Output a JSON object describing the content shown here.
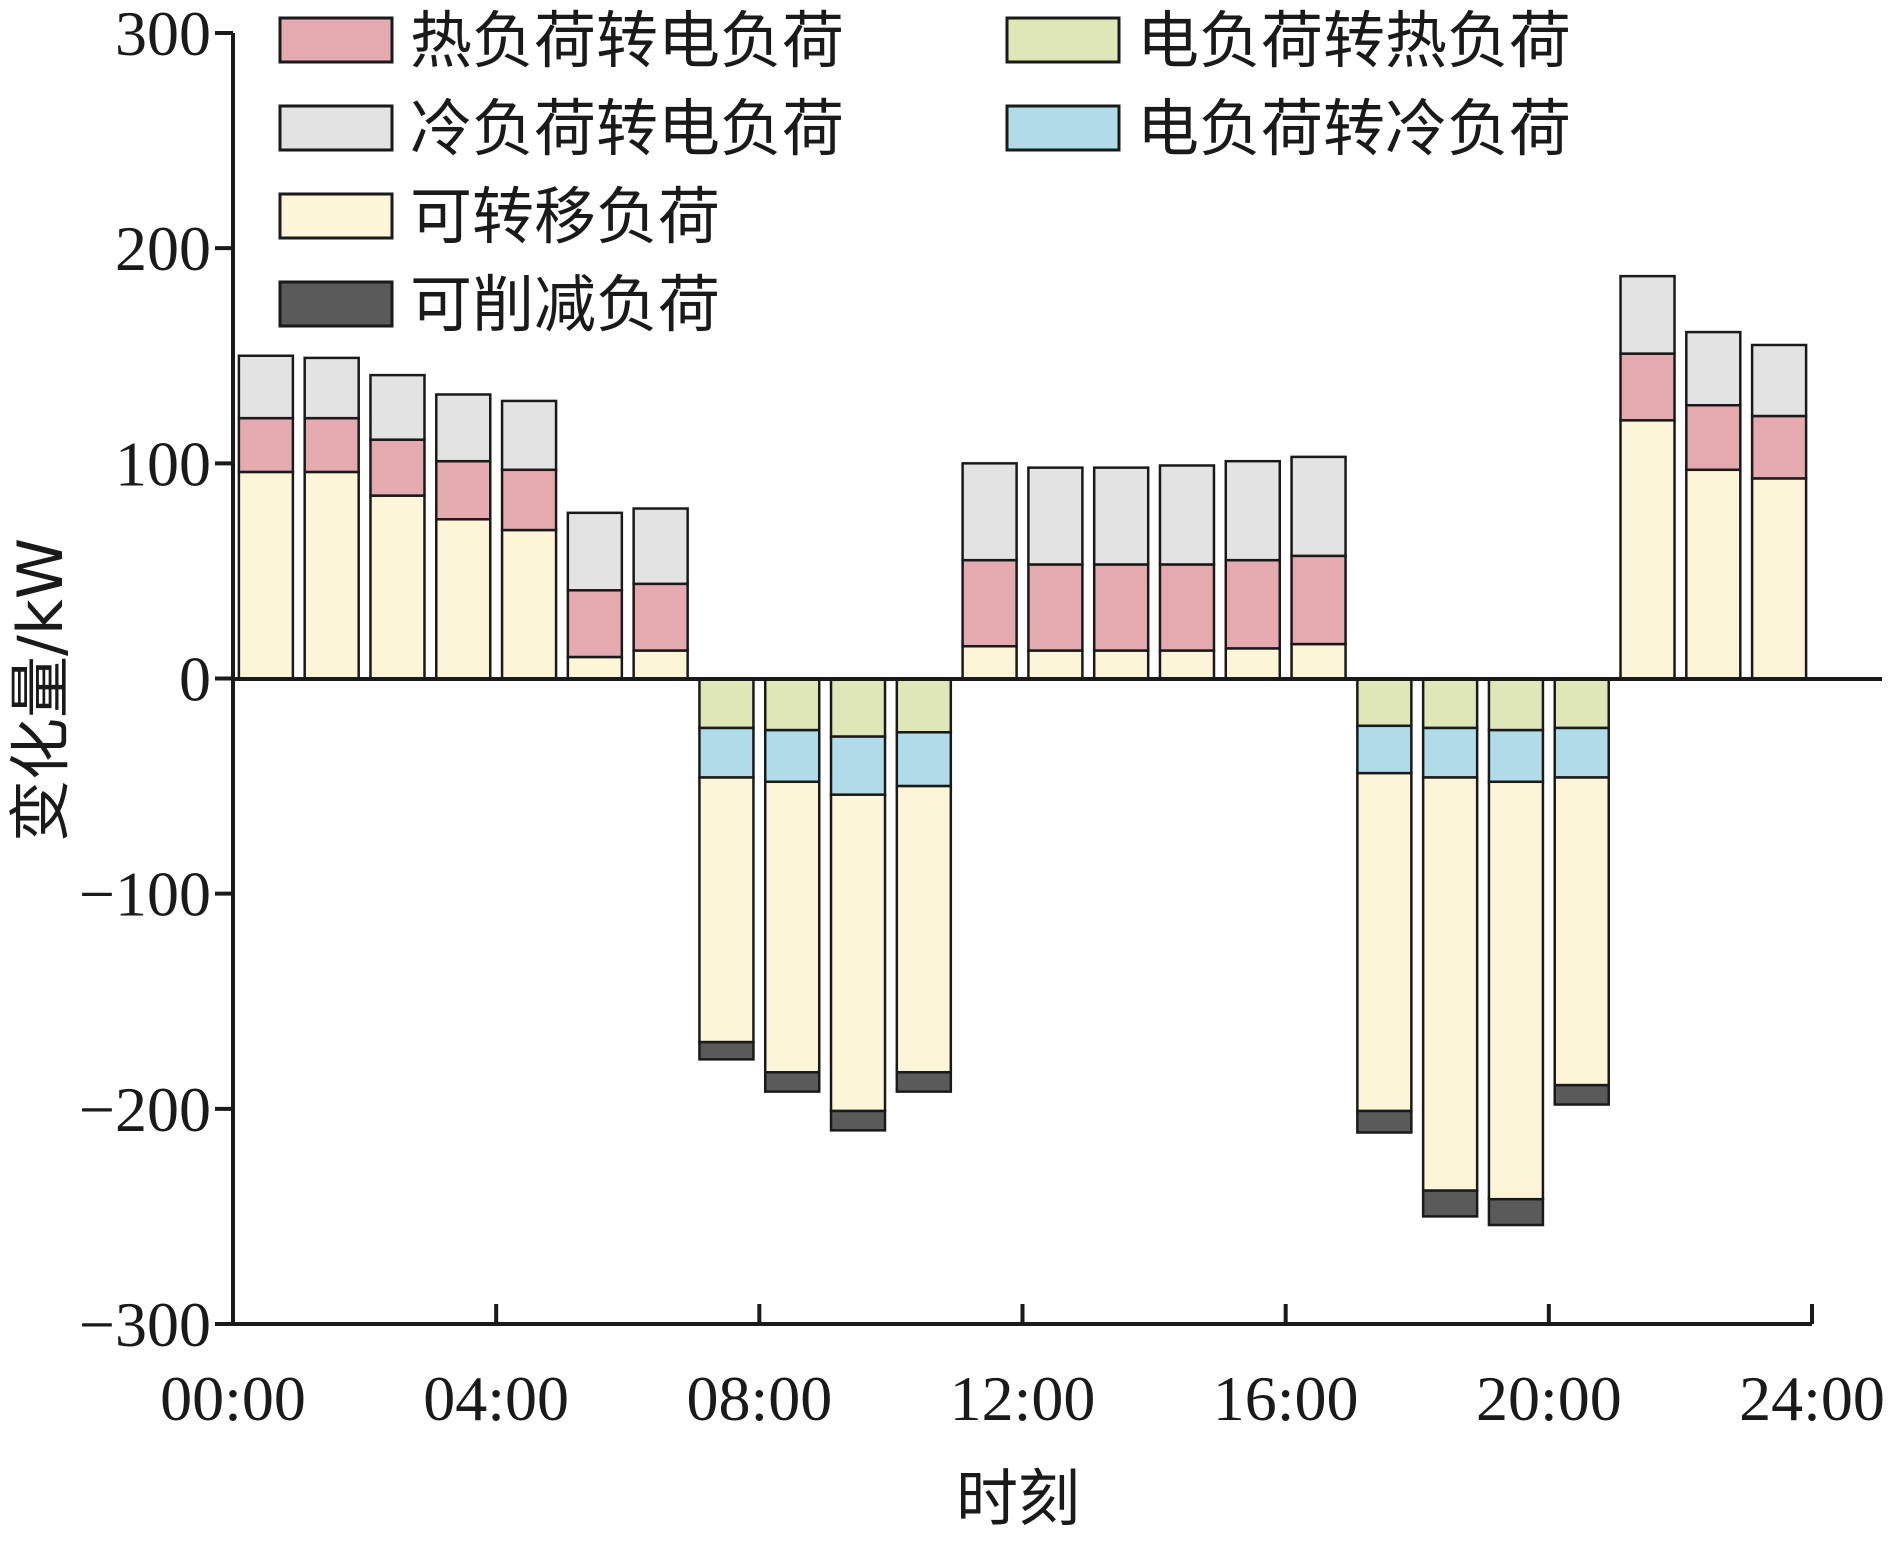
{
  "chart_data": {
    "type": "bar",
    "stacked": true,
    "title": "",
    "xlabel": "时刻",
    "ylabel": "变化量/kW",
    "ylim": [
      -300,
      300
    ],
    "yticks": [
      "300",
      "200",
      "100",
      "0",
      "−100",
      "−200",
      "−300"
    ],
    "ytick_values": [
      300,
      200,
      100,
      0,
      -100,
      -200,
      -300
    ],
    "xlim": [
      0,
      24
    ],
    "xticks": [
      "00:00",
      "04:00",
      "08:00",
      "12:00",
      "16:00",
      "20:00",
      "24:00"
    ],
    "xtick_values": [
      0,
      4,
      8,
      12,
      16,
      20,
      24
    ],
    "x": [
      1,
      2,
      3,
      4,
      5,
      6,
      7,
      8,
      9,
      10,
      11,
      12,
      13,
      14,
      15,
      16,
      17,
      18,
      19,
      20,
      21,
      22,
      23,
      24
    ],
    "legend_position": "top-left",
    "grid": false,
    "series": [
      {
        "name": "可转移负荷",
        "color": "#fdf5d8",
        "values": [
          96,
          96,
          85,
          74,
          69,
          10,
          13,
          -123,
          -135,
          -147,
          -133,
          15,
          13,
          13,
          13,
          14,
          16,
          -157,
          -192,
          -194,
          -143,
          120,
          97,
          93
        ]
      },
      {
        "name": "热负荷转电负荷",
        "color": "#e4aab0",
        "values": [
          25,
          25,
          26,
          27,
          28,
          31,
          31,
          0,
          0,
          0,
          0,
          40,
          40,
          40,
          40,
          41,
          41,
          0,
          0,
          0,
          0,
          31,
          30,
          29
        ]
      },
      {
        "name": "冷负荷转电负荷",
        "color": "#e3e3e3",
        "values": [
          29,
          28,
          30,
          31,
          32,
          36,
          35,
          0,
          0,
          0,
          0,
          45,
          45,
          45,
          46,
          46,
          46,
          0,
          0,
          0,
          0,
          36,
          34,
          33
        ]
      },
      {
        "name": "电负荷转热负荷",
        "color": "#dfe6b8",
        "values": [
          0,
          0,
          0,
          0,
          0,
          0,
          0,
          -23,
          -24,
          -27,
          -25,
          0,
          0,
          0,
          0,
          0,
          0,
          -22,
          -23,
          -24,
          -23,
          0,
          0,
          0
        ]
      },
      {
        "name": "电负荷转冷负荷",
        "color": "#b0dbe8",
        "values": [
          0,
          0,
          0,
          0,
          0,
          0,
          0,
          -23,
          -24,
          -27,
          -25,
          0,
          0,
          0,
          0,
          0,
          0,
          -22,
          -23,
          -24,
          -23,
          0,
          0,
          0
        ]
      },
      {
        "name": "可削减负荷",
        "color": "#5a5a5a",
        "values": [
          0,
          0,
          0,
          0,
          0,
          0,
          0,
          -8,
          -9,
          -9,
          -9,
          0,
          0,
          0,
          0,
          0,
          0,
          -10,
          -12,
          -12,
          -9,
          0,
          0,
          0
        ]
      }
    ],
    "stack_order_positive": [
      "可转移负荷",
      "热负荷转电负荷",
      "冷负荷转电负荷"
    ],
    "stack_order_negative": [
      "电负荷转热负荷",
      "电负荷转冷负荷",
      "可转移负荷",
      "可削减负荷"
    ],
    "legend_order": [
      "热负荷转电负荷",
      "电负荷转热负荷",
      "冷负荷转电负荷",
      "电负荷转冷负荷",
      "可转移负荷",
      "可削减负荷"
    ]
  }
}
